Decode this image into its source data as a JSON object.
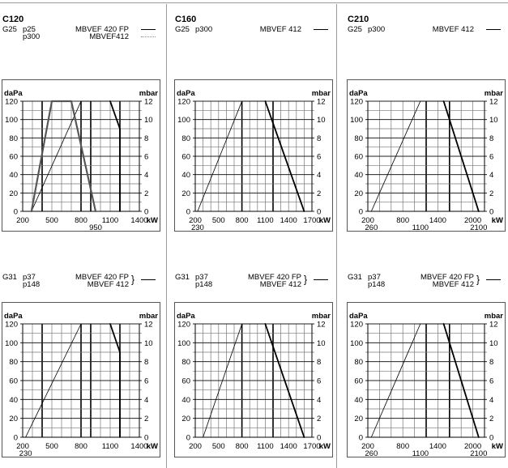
{
  "panels": [
    {
      "title": "C120",
      "gas": "G25",
      "pressures": [
        "p25",
        "p300"
      ],
      "models": [
        "MBVEF 420 FP",
        "MBVEF412"
      ],
      "legend_styles": [
        "solid",
        "dotted"
      ],
      "brace": false
    },
    {
      "title": "C160",
      "gas": "G25",
      "pressures": [
        "p300"
      ],
      "models": [
        "MBVEF 412"
      ],
      "legend_styles": [
        "solid"
      ],
      "brace": false
    },
    {
      "title": "C210",
      "gas": "G25",
      "pressures": [
        "p300"
      ],
      "models": [
        "MBVEF 412"
      ],
      "legend_styles": [
        "solid"
      ],
      "brace": false
    },
    {
      "title": "",
      "gas": "G31",
      "pressures": [
        "p37",
        "p148"
      ],
      "models": [
        "MBVEF 420 FP",
        "MBVEF 412"
      ],
      "legend_styles": [
        "solid"
      ],
      "brace": true
    },
    {
      "title": "",
      "gas": "G31",
      "pressures": [
        "p37",
        "p148"
      ],
      "models": [
        "MBVEF 420 FP",
        "MBVEF 412"
      ],
      "legend_styles": [
        "solid"
      ],
      "brace": true
    },
    {
      "title": "",
      "gas": "G31",
      "pressures": [
        "p37",
        "p148"
      ],
      "models": [
        "MBVEF 420 FP",
        "MBVEF 412"
      ],
      "legend_styles": [
        "solid"
      ],
      "brace": true
    }
  ],
  "chart_data": [
    {
      "type": "line",
      "ylabel": "daPa",
      "y2label": "mbar",
      "xunit": "kW",
      "xlim": [
        200,
        1400
      ],
      "ylim": [
        0,
        120
      ],
      "y2lim": [
        0,
        12
      ],
      "xticks": [
        "200",
        "500",
        "800",
        "1100",
        "1400"
      ],
      "xtick_values": [
        200,
        500,
        800,
        1100,
        1400
      ],
      "extra_xlabels": [
        {
          "value": 950,
          "label": "950"
        }
      ],
      "yticks": [
        "0",
        "20",
        "40",
        "60",
        "80",
        "100",
        "120"
      ],
      "y2ticks": [
        "0",
        "2",
        "4",
        "6",
        "8",
        "10",
        "12"
      ],
      "grid": true,
      "x_grid_step": 100,
      "heavy_x": [
        400,
        800,
        900,
        1200
      ],
      "series": [
        {
          "name": "MBVEF 420 FP",
          "style": "solid",
          "points": [
            [
              290,
              0
            ],
            [
              800,
              120
            ],
            [
              1100,
              120
            ],
            [
              1200,
              90
            ],
            [
              1200,
              0
            ]
          ]
        },
        {
          "name": "MBVEF412",
          "style": "dotted",
          "points": [
            [
              290,
              0
            ],
            [
              500,
              120
            ],
            [
              700,
              120
            ],
            [
              950,
              0
            ]
          ]
        }
      ]
    },
    {
      "type": "line",
      "ylabel": "daPa",
      "y2label": "mbar",
      "xunit": "kW",
      "xlim": [
        200,
        1700
      ],
      "ylim": [
        0,
        120
      ],
      "y2lim": [
        0,
        12
      ],
      "xticks": [
        "200",
        "500",
        "800",
        "1100",
        "1400",
        "1700"
      ],
      "xtick_values": [
        200,
        500,
        800,
        1100,
        1400,
        1700
      ],
      "extra_xlabels": [
        {
          "value": 230,
          "label": "230"
        }
      ],
      "yticks": [
        "0",
        "20",
        "40",
        "60",
        "80",
        "100",
        "120"
      ],
      "y2ticks": [
        "0",
        "2",
        "4",
        "6",
        "8",
        "10",
        "12"
      ],
      "grid": true,
      "x_grid_step": 100,
      "heavy_x": [
        800,
        1200
      ],
      "series": [
        {
          "name": "MBVEF 412",
          "style": "solid",
          "points": [
            [
              230,
              0
            ],
            [
              800,
              120
            ],
            [
              1100,
              120
            ],
            [
              1600,
              0
            ]
          ]
        }
      ]
    },
    {
      "type": "line",
      "ylabel": "daPa",
      "y2label": "mbar",
      "xunit": "kW",
      "xlim": [
        200,
        2200
      ],
      "ylim": [
        0,
        120
      ],
      "y2lim": [
        0,
        12
      ],
      "xticks": [
        "200",
        "800",
        "1400",
        "2000"
      ],
      "xtick_values": [
        200,
        800,
        1400,
        2000
      ],
      "extra_xlabels": [
        {
          "value": 260,
          "label": "260"
        },
        {
          "value": 1100,
          "label": "1100"
        },
        {
          "value": 2100,
          "label": "2100"
        }
      ],
      "yticks": [
        "0",
        "20",
        "40",
        "60",
        "80",
        "100",
        "120"
      ],
      "y2ticks": [
        "0",
        "2",
        "4",
        "6",
        "8",
        "10",
        "12"
      ],
      "grid": true,
      "x_grid_step": 200,
      "heavy_x": [
        1100,
        1200,
        1600
      ],
      "series": [
        {
          "name": "MBVEF 412",
          "style": "solid",
          "points": [
            [
              260,
              0
            ],
            [
              1100,
              120
            ],
            [
              1500,
              120
            ],
            [
              2100,
              0
            ]
          ]
        }
      ]
    },
    {
      "type": "line",
      "ylabel": "daPa",
      "y2label": "mbar",
      "xunit": "kW",
      "xlim": [
        200,
        1400
      ],
      "ylim": [
        0,
        120
      ],
      "y2lim": [
        0,
        12
      ],
      "xticks": [
        "200",
        "500",
        "800",
        "1100",
        "1400"
      ],
      "xtick_values": [
        200,
        500,
        800,
        1100,
        1400
      ],
      "extra_xlabels": [
        {
          "value": 230,
          "label": "230"
        }
      ],
      "yticks": [
        "0",
        "20",
        "40",
        "60",
        "80",
        "100",
        "120"
      ],
      "y2ticks": [
        "0",
        "2",
        "4",
        "6",
        "8",
        "10",
        "12"
      ],
      "grid": true,
      "x_grid_step": 100,
      "heavy_x": [
        400,
        800,
        900,
        1200
      ],
      "series": [
        {
          "name": "MBVEF 420 FP / MBVEF 412",
          "style": "solid",
          "points": [
            [
              230,
              0
            ],
            [
              800,
              120
            ],
            [
              1100,
              120
            ],
            [
              1200,
              90
            ],
            [
              1200,
              0
            ]
          ]
        }
      ]
    },
    {
      "type": "line",
      "ylabel": "daPa",
      "y2label": "mbar",
      "xunit": "kW",
      "xlim": [
        200,
        1700
      ],
      "ylim": [
        0,
        120
      ],
      "y2lim": [
        0,
        12
      ],
      "xticks": [
        "200",
        "500",
        "800",
        "1100",
        "1400",
        "1700"
      ],
      "xtick_values": [
        200,
        500,
        800,
        1100,
        1400,
        1700
      ],
      "extra_xlabels": [],
      "yticks": [
        "0",
        "20",
        "40",
        "60",
        "80",
        "100",
        "120"
      ],
      "y2ticks": [
        "0",
        "2",
        "4",
        "6",
        "8",
        "10",
        "12"
      ],
      "grid": true,
      "x_grid_step": 100,
      "heavy_x": [
        800,
        1200
      ],
      "series": [
        {
          "name": "MBVEF 420 FP / MBVEF 412",
          "style": "solid",
          "points": [
            [
              300,
              0
            ],
            [
              800,
              120
            ],
            [
              1100,
              120
            ],
            [
              1600,
              0
            ]
          ]
        }
      ]
    },
    {
      "type": "line",
      "ylabel": "daPa",
      "y2label": "mbar",
      "xunit": "kW",
      "xlim": [
        200,
        2200
      ],
      "ylim": [
        0,
        120
      ],
      "y2lim": [
        0,
        12
      ],
      "xticks": [
        "200",
        "800",
        "1400",
        "2000"
      ],
      "xtick_values": [
        200,
        800,
        1400,
        2000
      ],
      "extra_xlabels": [
        {
          "value": 260,
          "label": "260"
        },
        {
          "value": 1100,
          "label": "1100"
        },
        {
          "value": 2100,
          "label": "2100"
        }
      ],
      "yticks": [
        "0",
        "20",
        "40",
        "60",
        "80",
        "100",
        "120"
      ],
      "y2ticks": [
        "0",
        "2",
        "4",
        "6",
        "8",
        "10",
        "12"
      ],
      "grid": true,
      "x_grid_step": 200,
      "heavy_x": [
        1100,
        1200,
        1600
      ],
      "series": [
        {
          "name": "MBVEF 420 FP / MBVEF 412",
          "style": "solid",
          "points": [
            [
              260,
              0
            ],
            [
              1100,
              120
            ],
            [
              1500,
              120
            ],
            [
              2100,
              0
            ]
          ]
        }
      ]
    }
  ]
}
